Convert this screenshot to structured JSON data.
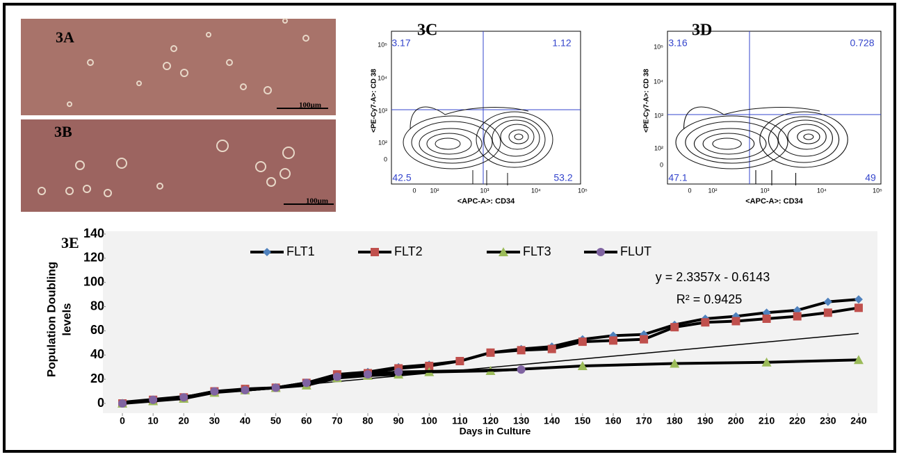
{
  "panels": {
    "a": {
      "label": "3A",
      "scale_bar": "100µm"
    },
    "b": {
      "label": "3B",
      "scale_bar": "100µm"
    },
    "c": {
      "label": "3C",
      "quadrants": [
        3.17,
        1.12,
        42.5,
        53.2
      ],
      "x_label": "<APC-A>: CD34",
      "y_label": "<PE-Cy7-A>: CD 38",
      "xticks": [
        "0",
        "10²",
        "10³",
        "10⁴",
        "10⁵"
      ],
      "yticks": [
        "0",
        "10²",
        "10³",
        "10⁴",
        "10⁵"
      ]
    },
    "d": {
      "label": "3D",
      "quadrants": [
        3.16,
        0.728,
        47.1,
        49
      ],
      "x_label": "<APC-A>: CD34",
      "y_label": "<PE-Cy7-A>: CD 38",
      "xticks": [
        "0",
        "10²",
        "10³",
        "10⁴",
        "10⁵"
      ],
      "yticks": [
        "0",
        "10²",
        "10³",
        "10⁴",
        "10⁵"
      ]
    }
  },
  "chart_data": {
    "type": "line",
    "panel_label": "3E",
    "x_label": "Days in Culture",
    "y_label": [
      "Population Doubling",
      "levels"
    ],
    "xlim": [
      -5,
      245
    ],
    "xticks": [
      0,
      10,
      20,
      30,
      40,
      50,
      60,
      70,
      80,
      90,
      100,
      110,
      120,
      130,
      140,
      150,
      160,
      170,
      180,
      190,
      200,
      210,
      220,
      230,
      240
    ],
    "ylim": [
      0,
      140
    ],
    "yticks": [
      0,
      20,
      40,
      60,
      80,
      100,
      120,
      140
    ],
    "series": [
      {
        "name": "FLT1",
        "color": "#4f81bd",
        "marker": "diamond",
        "x": [
          0,
          10,
          20,
          30,
          40,
          50,
          60,
          70,
          80,
          90,
          100,
          110,
          120,
          130,
          140,
          150,
          160,
          170,
          180,
          190,
          200,
          210,
          220,
          230,
          240
        ],
        "values": [
          0,
          3,
          5,
          10,
          11,
          13,
          17,
          24,
          26,
          30,
          32,
          35,
          42,
          45,
          47,
          53,
          56,
          57,
          65,
          70,
          72,
          75,
          77,
          84,
          86
        ]
      },
      {
        "name": "FLT2",
        "color": "#c0504d",
        "marker": "square",
        "x": [
          0,
          10,
          20,
          30,
          40,
          50,
          60,
          70,
          80,
          90,
          100,
          110,
          120,
          130,
          140,
          150,
          160,
          170,
          180,
          190,
          200,
          210,
          220,
          230,
          240
        ],
        "values": [
          0,
          3,
          5,
          10,
          12,
          13,
          17,
          24,
          25,
          29,
          31,
          35,
          42,
          44,
          45,
          51,
          52,
          53,
          63,
          67,
          68,
          70,
          72,
          75,
          79
        ]
      },
      {
        "name": "FLT3",
        "color": "#9bbb59",
        "marker": "triangle",
        "x": [
          0,
          10,
          20,
          30,
          40,
          50,
          60,
          70,
          80,
          90,
          100,
          120,
          150,
          180,
          210,
          240
        ],
        "values": [
          0,
          2,
          4,
          9,
          11,
          13,
          15,
          21,
          23,
          24,
          26,
          27,
          31,
          33,
          34,
          36
        ]
      },
      {
        "name": "FLUT",
        "color": "#8064a2",
        "marker": "circle",
        "x": [
          0,
          10,
          20,
          30,
          40,
          50,
          60,
          70,
          80,
          90,
          130
        ],
        "values": [
          0,
          3,
          5,
          10,
          11,
          13,
          17,
          22,
          24,
          26,
          28
        ]
      }
    ],
    "trendline": {
      "slope": 2.3357,
      "intercept": -0.6143,
      "equation": "y = 2.3357x - 0.6143",
      "r2_label": "R² = 0.9425"
    },
    "legend": "top"
  }
}
